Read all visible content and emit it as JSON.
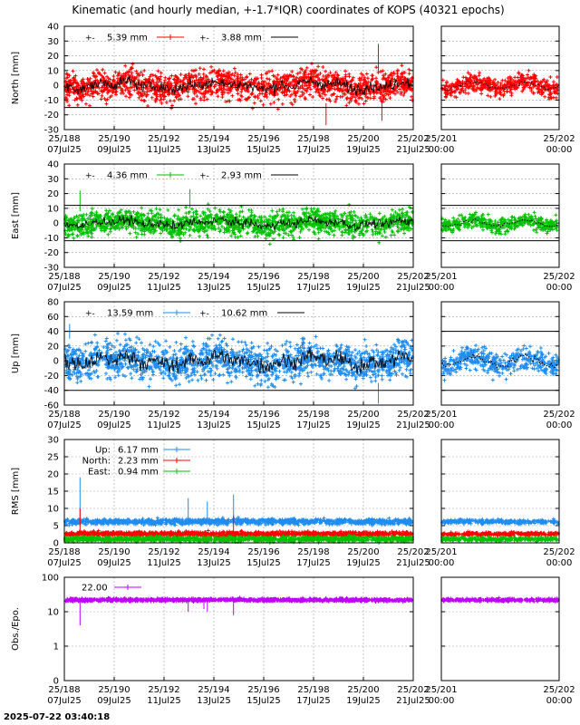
{
  "title": "Kinematic (and hourly median, +-1.7*IQR) coordinates of KOPS (40321 epochs)",
  "timestamp": "2025-07-22 03:40:18",
  "colors": {
    "north": "#ff0000",
    "east": "#00c000",
    "up": "#1e8cf0",
    "obs": "#c000ff",
    "median": "#000000",
    "grid": "#a0a0a0"
  },
  "chart_data": [
    {
      "id": "north",
      "type": "scatter",
      "ylabel": "North [mm]",
      "ylim": [
        -30,
        40
      ],
      "yticks": [
        -30,
        -20,
        -10,
        0,
        10,
        20,
        30,
        40
      ],
      "bounds": [
        15,
        -15
      ],
      "legend": [
        {
          "label": "5.39 mm",
          "kind": "series"
        },
        {
          "label": "3.88 mm",
          "kind": "median"
        }
      ],
      "series": [
        {
          "name": "North",
          "spread": 5.39,
          "median_spread": 3.88
        }
      ]
    },
    {
      "id": "east",
      "type": "scatter",
      "ylabel": "East [mm]",
      "ylim": [
        -30,
        40
      ],
      "yticks": [
        -30,
        -20,
        -10,
        0,
        10,
        20,
        30,
        40
      ],
      "bounds": [
        12,
        -12
      ],
      "legend": [
        {
          "label": "4.36 mm",
          "kind": "series"
        },
        {
          "label": "2.93 mm",
          "kind": "median"
        }
      ],
      "series": [
        {
          "name": "East",
          "spread": 4.36,
          "median_spread": 2.93
        }
      ]
    },
    {
      "id": "up",
      "type": "scatter",
      "ylabel": "Up [mm]",
      "ylim": [
        -60,
        80
      ],
      "yticks": [
        -60,
        -40,
        -20,
        0,
        20,
        40,
        60,
        80
      ],
      "bounds": [
        40,
        -40
      ],
      "legend": [
        {
          "label": "13.59 mm",
          "kind": "series"
        },
        {
          "label": "10.62 mm",
          "kind": "median"
        }
      ],
      "series": [
        {
          "name": "Up",
          "spread": 13.59,
          "median_spread": 10.62
        }
      ]
    },
    {
      "id": "rms",
      "type": "scatter",
      "ylabel": "RMS [mm]",
      "ylim": [
        0,
        30
      ],
      "yticks": [
        0,
        5,
        10,
        15,
        20,
        25,
        30
      ],
      "legend": [
        {
          "name": "Up:",
          "value": "6.17 mm",
          "series": "up"
        },
        {
          "name": "North:",
          "value": "2.23 mm",
          "series": "north"
        },
        {
          "name": "East:",
          "value": "0.94 mm",
          "series": "east"
        }
      ],
      "series": [
        {
          "name": "Up",
          "mean": 6.17
        },
        {
          "name": "North",
          "mean": 2.23
        },
        {
          "name": "East",
          "mean": 0.94
        }
      ]
    },
    {
      "id": "obs",
      "type": "scatter",
      "ylabel": "Obs./Epo.",
      "yscale": "log",
      "ylim": [
        0,
        100
      ],
      "yticks": [
        "0",
        "1",
        "10",
        "100"
      ],
      "legend": [
        {
          "label": "22.00",
          "kind": "series"
        }
      ],
      "series": [
        {
          "name": "Obs./Epo.",
          "mean": 22.0
        }
      ]
    }
  ],
  "main_xaxis": {
    "xlim": [
      188,
      202
    ],
    "ticks": [
      {
        "doy": "25/188",
        "date": "07Jul25"
      },
      {
        "doy": "25/190",
        "date": "09Jul25"
      },
      {
        "doy": "25/192",
        "date": "11Jul25"
      },
      {
        "doy": "25/194",
        "date": "13Jul25"
      },
      {
        "doy": "25/196",
        "date": "15Jul25"
      },
      {
        "doy": "25/198",
        "date": "17Jul25"
      },
      {
        "doy": "25/200",
        "date": "19Jul25"
      },
      {
        "doy": "25/202",
        "date": "21Jul25"
      }
    ]
  },
  "zoom_xaxis": {
    "xlim": [
      201,
      202
    ],
    "ticks": [
      {
        "doy": "25/201",
        "date": "00:00"
      },
      {
        "doy": "25/202",
        "date": "00:00"
      }
    ]
  }
}
